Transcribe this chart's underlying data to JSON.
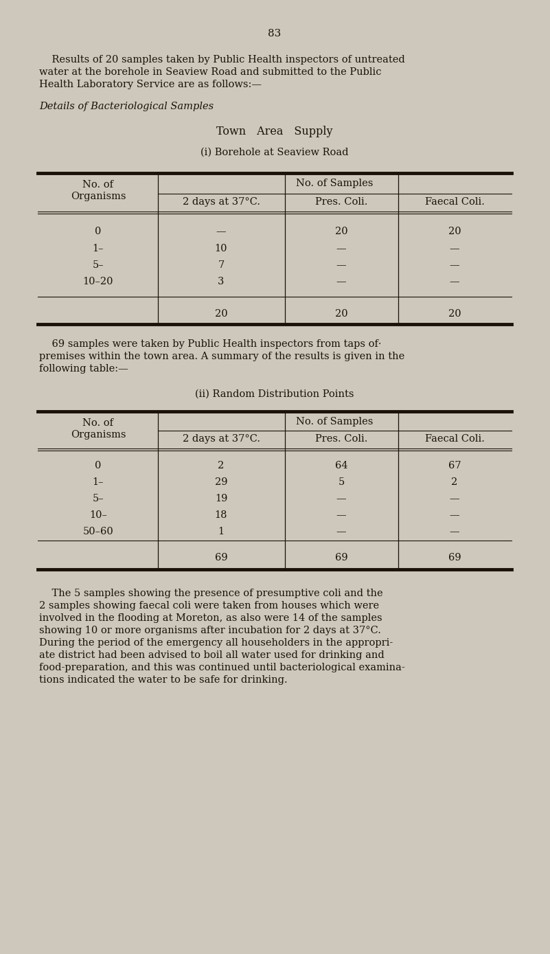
{
  "bg_color": "#cdc7bc",
  "text_color": "#1a1208",
  "page_number": "83",
  "intro_line1": "    Results of 20 samples taken by Public Health inspectors of untreated",
  "intro_line2": "water at the borehole in Seaview Road and submitted to the Public",
  "intro_line3": "Health Laboratory Service are as follows:—",
  "italic_heading": "Details of Bacteriological Samples",
  "section_title": "Town Area Supply",
  "table1_subtitle": "(i) Borehole at Seaview Road",
  "table1_col_header_main": "No. of Samples",
  "table1_col_headers": [
    "2 days at 37°C.",
    "Pres. Coli.",
    "Faecal Coli."
  ],
  "table1_row_header_line1": "No. of",
  "table1_row_header_line2": "Organisms",
  "table1_rows": [
    [
      "0",
      "—",
      "20",
      "20"
    ],
    [
      "1–",
      "10",
      "—",
      "—"
    ],
    [
      "5–",
      "7",
      "—",
      "—"
    ],
    [
      "10–20",
      "3",
      "—",
      "—"
    ]
  ],
  "table1_totals": [
    "20",
    "20",
    "20"
  ],
  "between_line1": "    69 samples were taken by Public Health inspectors from taps of·",
  "between_line2": "premises within the town area. A summary of the results is given in the",
  "between_line3": "following table:—",
  "table2_subtitle": "(ii) Random Distribution Points",
  "table2_col_header_main": "No. of Samples",
  "table2_col_headers": [
    "2 days at 37°C.",
    "Pres. Coli.",
    "Faecal Coli."
  ],
  "table2_row_header_line1": "No. of",
  "table2_row_header_line2": "Organisms",
  "table2_rows": [
    [
      "0",
      "2",
      "64",
      "67"
    ],
    [
      "1–",
      "29",
      "5",
      "2"
    ],
    [
      "5–",
      "19",
      "—",
      "—"
    ],
    [
      "10–",
      "18",
      "—",
      "—"
    ],
    [
      "50–60",
      "1",
      "—",
      "—"
    ]
  ],
  "table2_totals": [
    "69",
    "69",
    "69"
  ],
  "closing_line1": "    The 5 samples showing the presence of presumptive coli and the",
  "closing_line2": "2 samples showing faecal coli were taken from houses which were",
  "closing_line3": "involved in the flooding at Moreton, as also were 14 of the samples",
  "closing_line4": "showing 10 or more organisms after incubation for 2 days at 37°C.",
  "closing_line5": "During the period of the emergency all householders in the appropri­",
  "closing_line6": "ate district had been advised to boil all water used for drinking and",
  "closing_line7": "food-preparation, and this was continued until bacteriological examina­",
  "closing_line8": "tions indicated the water to be safe for drinking."
}
